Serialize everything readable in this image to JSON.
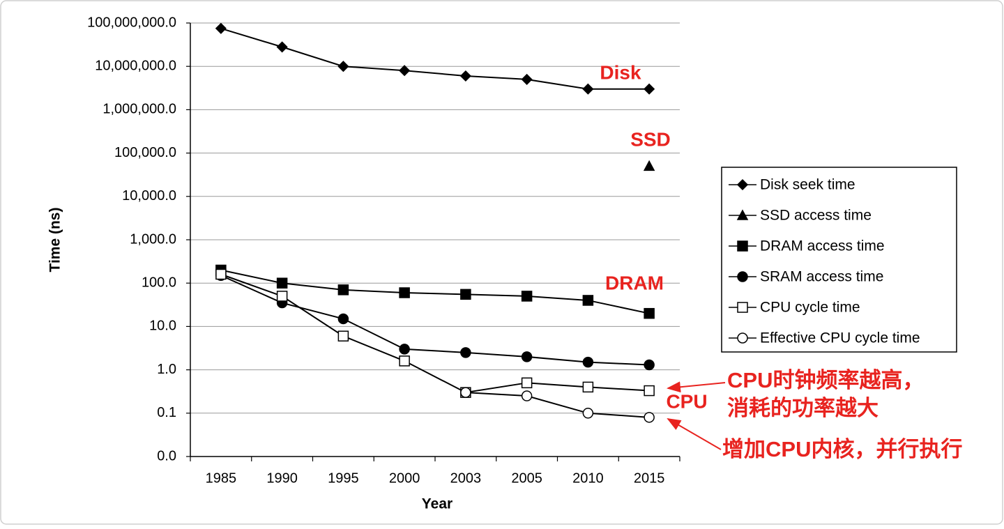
{
  "chart_data": {
    "type": "line",
    "x_label": "Year",
    "y_label": "Time (ns)",
    "log_y": true,
    "grid": true,
    "legend": "right",
    "categories": [
      "1985",
      "1990",
      "1995",
      "2000",
      "2003",
      "2005",
      "2010",
      "2015"
    ],
    "ylim": [
      0.01,
      100000000
    ],
    "yticks": [
      {
        "value": 0.01,
        "label": "0.0"
      },
      {
        "value": 0.1,
        "label": "0.1"
      },
      {
        "value": 1,
        "label": "1.0"
      },
      {
        "value": 10,
        "label": "10.0"
      },
      {
        "value": 100,
        "label": "100.0"
      },
      {
        "value": 1000,
        "label": "1,000.0"
      },
      {
        "value": 10000,
        "label": "10,000.0"
      },
      {
        "value": 100000,
        "label": "100,000.0"
      },
      {
        "value": 1000000,
        "label": "1,000,000.0"
      },
      {
        "value": 10000000,
        "label": "10,000,000.0"
      },
      {
        "value": 100000000,
        "label": "100,000,000.0"
      }
    ],
    "series": [
      {
        "name": "Disk seek time",
        "color": "#000000",
        "marker": "diamond",
        "values": [
          75000000,
          28000000,
          10000000,
          8000000,
          6000000,
          5000000,
          3000000,
          3000000
        ]
      },
      {
        "name": "SSD access time",
        "color": "#000000",
        "marker": "triangle",
        "values": [
          null,
          null,
          null,
          null,
          null,
          null,
          null,
          50000
        ]
      },
      {
        "name": "DRAM access time",
        "color": "#000000",
        "marker": "square",
        "values": [
          200,
          100,
          70,
          60,
          55,
          50,
          40,
          20
        ]
      },
      {
        "name": "SRAM access time",
        "color": "#000000",
        "marker": "circle",
        "values": [
          150,
          35,
          15,
          3,
          2.5,
          2,
          1.5,
          1.3
        ]
      },
      {
        "name": "CPU cycle time",
        "color": "#000000",
        "marker": "square-open",
        "values": [
          160,
          50,
          6,
          1.6,
          0.3,
          0.5,
          0.4,
          0.33
        ]
      },
      {
        "name": "Effective CPU cycle time",
        "color": "#000000",
        "marker": "circle-open",
        "values": [
          null,
          null,
          null,
          null,
          0.3,
          0.25,
          0.1,
          0.08
        ]
      }
    ],
    "annotations": [
      "Disk",
      "SSD",
      "DRAM",
      "CPU",
      "CPU时钟频率越高，",
      "消耗的功率越大",
      "增加CPU内核，并行执行"
    ],
    "annotation_color": "#e8231f"
  }
}
